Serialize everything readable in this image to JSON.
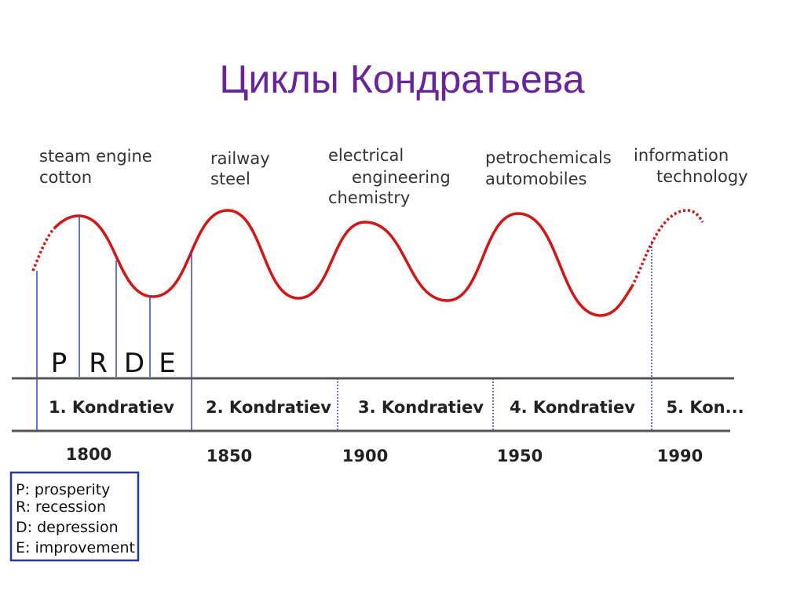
{
  "title": "Циклы Кондратьева",
  "innovations": [
    {
      "lines": [
        "steam engine",
        "cotton"
      ]
    },
    {
      "lines": [
        "railway",
        "steel"
      ]
    },
    {
      "lines": [
        "electrical",
        "engineering",
        "chemistry"
      ]
    },
    {
      "lines": [
        "petrochemicals",
        "automobiles"
      ]
    },
    {
      "lines": [
        "information",
        "technology"
      ]
    }
  ],
  "phases": [
    "P",
    "R",
    "D",
    "E"
  ],
  "cycles": [
    "1. Kondratiev",
    "2. Kondratiev",
    "3. Kondratiev",
    "4. Kondratiev",
    "5. Kon..."
  ],
  "years": [
    "1800",
    "1850",
    "1900",
    "1950",
    "1990"
  ],
  "legend": [
    "P: prosperity",
    "R: recession",
    "D: depression",
    "E: improvement"
  ]
}
